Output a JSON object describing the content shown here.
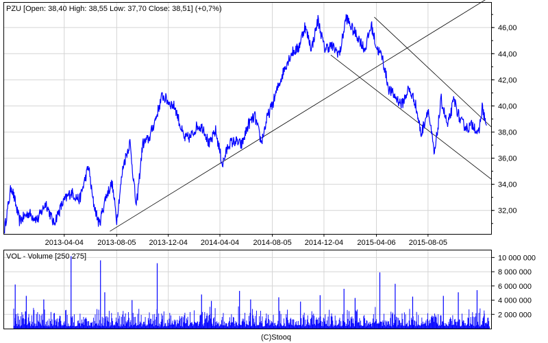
{
  "chart_data": [
    {
      "type": "line",
      "title": "PZU [Open: 38,40  High: 38,55  Low: 37,70  Close: 38,51] (+0,7%)",
      "x_tick_labels": [
        "2013-04-04",
        "2013-08-05",
        "2013-12-04",
        "2014-04-04",
        "2014-08-05",
        "2014-12-04",
        "2015-04-06",
        "2015-08-05"
      ],
      "y_tick_labels": [
        "32,00",
        "34,00",
        "36,00",
        "38,00",
        "40,00",
        "42,00",
        "44,00",
        "46,00"
      ],
      "y_ticks": [
        32,
        34,
        36,
        38,
        40,
        42,
        44,
        46
      ],
      "ylim": [
        30.2,
        47.9
      ],
      "xlim": [
        "2012-11-14",
        "2015-12-31"
      ],
      "grid": true,
      "series": [
        {
          "color": "#0000ff",
          "x": [
            "2012-11-15",
            "2012-12-01",
            "2012-12-20",
            "2013-01-10",
            "2013-02-01",
            "2013-02-20",
            "2013-03-10",
            "2013-04-01",
            "2013-04-20",
            "2013-05-10",
            "2013-05-31",
            "2013-06-10",
            "2013-06-25",
            "2013-07-10",
            "2013-07-25",
            "2013-08-05",
            "2013-08-20",
            "2013-09-05",
            "2013-09-20",
            "2013-10-05",
            "2013-10-20",
            "2013-11-05",
            "2013-11-20",
            "2013-12-05",
            "2013-12-20",
            "2014-01-10",
            "2014-01-25",
            "2014-02-10",
            "2014-02-25",
            "2014-03-10",
            "2014-03-25",
            "2014-04-10",
            "2014-04-25",
            "2014-05-10",
            "2014-05-25",
            "2014-06-10",
            "2014-06-25",
            "2014-07-10",
            "2014-07-25",
            "2014-08-05",
            "2014-08-20",
            "2014-09-05",
            "2014-09-20",
            "2014-10-05",
            "2014-10-20",
            "2014-11-05",
            "2014-11-20",
            "2014-12-05",
            "2014-12-20",
            "2015-01-10",
            "2015-01-25",
            "2015-02-10",
            "2015-02-25",
            "2015-03-10",
            "2015-03-25",
            "2015-04-06",
            "2015-04-20",
            "2015-05-05",
            "2015-05-20",
            "2015-06-05",
            "2015-06-20",
            "2015-07-05",
            "2015-07-20",
            "2015-08-05",
            "2015-08-20",
            "2015-09-05",
            "2015-09-20",
            "2015-10-05",
            "2015-10-20",
            "2015-11-05",
            "2015-11-20",
            "2015-12-01",
            "2015-12-10",
            "2015-12-20"
          ],
          "values": [
            30.6,
            33.9,
            31.2,
            31.8,
            31.3,
            32.6,
            31.0,
            32.6,
            33.4,
            32.8,
            35.4,
            32.8,
            30.9,
            33.0,
            34.1,
            31.3,
            35.4,
            37.2,
            32.2,
            37.1,
            37.5,
            39.1,
            40.8,
            40.3,
            39.9,
            37.5,
            37.6,
            38.5,
            38.3,
            37.0,
            38.1,
            35.5,
            37.1,
            37.3,
            37.0,
            38.6,
            39.2,
            37.2,
            39.2,
            40.1,
            41.6,
            43.1,
            44.1,
            44.4,
            46.1,
            44.4,
            46.6,
            44.4,
            44.6,
            44.0,
            46.8,
            45.8,
            45.1,
            44.3,
            46.2,
            44.5,
            43.7,
            41.3,
            40.7,
            40.1,
            41.3,
            40.4,
            37.8,
            39.8,
            36.2,
            40.5,
            38.4,
            40.5,
            38.8,
            38.3,
            38.6,
            37.7,
            39.9,
            38.5
          ]
        }
      ],
      "trendlines": [
        {
          "color": "#000000",
          "x": [
            "2013-07-20",
            "2015-12-31"
          ],
          "values": [
            30.4,
            48.4
          ]
        },
        {
          "color": "#000000",
          "x": [
            "2014-12-20",
            "2015-12-31"
          ],
          "values": [
            43.9,
            34.4
          ]
        },
        {
          "color": "#000000",
          "x": [
            "2015-04-01",
            "2015-12-31"
          ],
          "values": [
            46.8,
            38.4
          ]
        }
      ]
    },
    {
      "type": "bar",
      "title": "VOL - Volume [250 275]",
      "x_tick_labels": [],
      "y_tick_labels": [
        "2 000 000",
        "4 000 000",
        "6 000 000",
        "8 000 000",
        "10 000 000"
      ],
      "y_ticks": [
        2000000,
        4000000,
        6000000,
        8000000,
        10000000
      ],
      "ylim": [
        0,
        11000000
      ],
      "grid": true,
      "series": [
        {
          "color": "#0000ff",
          "x": [
            "2012-12-10",
            "2013-01-05",
            "2013-02-15",
            "2013-04-20",
            "2013-06-28",
            "2013-07-08",
            "2013-09-10",
            "2013-11-08",
            "2014-02-20",
            "2014-03-15",
            "2014-05-20",
            "2014-06-15",
            "2014-08-20",
            "2014-10-10",
            "2014-11-25",
            "2015-01-20",
            "2015-02-15",
            "2015-04-14",
            "2015-05-20",
            "2015-06-30",
            "2015-09-10",
            "2015-10-15",
            "2015-11-28",
            "2015-12-15"
          ],
          "values": [
            6200000,
            4600000,
            4100000,
            10200000,
            9600000,
            5100000,
            4000000,
            9200000,
            4800000,
            3900000,
            5300000,
            4100000,
            4400000,
            3800000,
            4700000,
            5600000,
            4300000,
            7900000,
            6300000,
            4500000,
            4600000,
            5100000,
            5400000,
            2100000
          ]
        }
      ],
      "baseline_volume_range": [
        300000,
        2400000
      ]
    }
  ],
  "footer": "(C)Stooq"
}
